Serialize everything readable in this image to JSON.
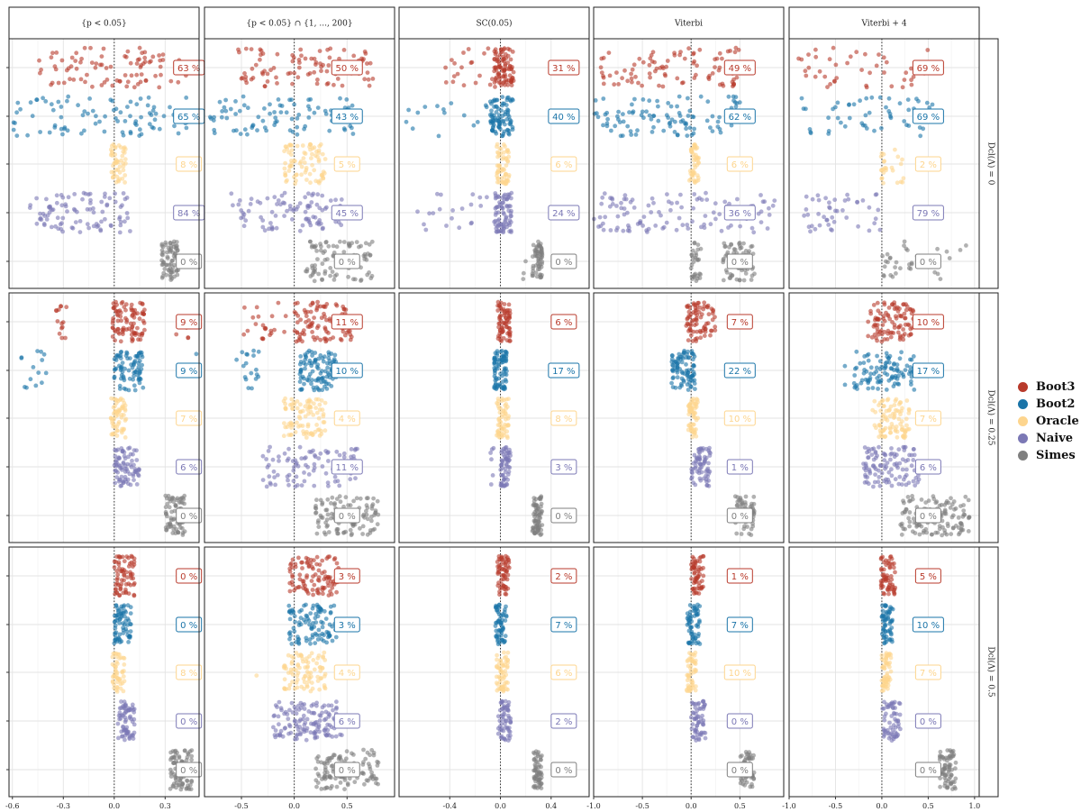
{
  "chart_data": {
    "type": "scatter",
    "description": "Faceted jittered strip plot, 3 rows x 5 columns; each panel shows points per method with a percentage label; dotted vertical line at x=0.",
    "columns": [
      {
        "label": "{p < 0.05}",
        "xlim": [
          -0.62,
          0.5
        ],
        "ticks": [
          -0.6,
          -0.3,
          0.0,
          0.3
        ],
        "tick_labels": [
          "-0.6",
          "-0.3",
          "0.0",
          "0.3"
        ],
        "label_x": 0.44
      },
      {
        "label": "{p < 0.05} ∩ {1, ..., 200}",
        "xlim": [
          -0.85,
          0.95
        ],
        "ticks": [
          -0.5,
          0.0,
          0.5
        ],
        "tick_labels": [
          "-0.5",
          "0.0",
          "0.5"
        ],
        "label_x": 0.5
      },
      {
        "label": "SC(0.05)",
        "xlim": [
          -0.8,
          0.7
        ],
        "ticks": [
          -0.4,
          0.0,
          0.4
        ],
        "tick_labels": [
          "-0.4",
          "0.0",
          "0.4"
        ],
        "label_x": 0.5
      },
      {
        "label": "Viterbi",
        "xlim": [
          -1.0,
          0.95
        ],
        "ticks": [
          -1.0,
          -0.5,
          0.0,
          0.5
        ],
        "tick_labels": [
          "-1.0",
          "-0.5",
          "0.0",
          "0.5"
        ],
        "label_x": 0.5
      },
      {
        "label": "Viterbi + 4",
        "xlim": [
          -1.0,
          1.05
        ],
        "ticks": [
          -1.0,
          -0.5,
          0.0,
          0.5,
          1.0
        ],
        "tick_labels": [
          "-1.0",
          "-0.5",
          "0.0",
          "0.5",
          "1.0"
        ],
        "label_x": 0.5
      }
    ],
    "rows": [
      {
        "label": "Dcl(Λ) = 0"
      },
      {
        "label": "Dcl(Λ) = 0.25"
      },
      {
        "label": "Dcl(Λ) = 0.5"
      }
    ],
    "series": [
      {
        "name": "Boot3",
        "color": "#b83a2b"
      },
      {
        "name": "Boot2",
        "color": "#1a74a8"
      },
      {
        "name": "Oracle",
        "color": "#fdd58e"
      },
      {
        "name": "Naive",
        "color": "#7b78b5"
      },
      {
        "name": "Simes",
        "color": "#7f7f7f"
      }
    ],
    "percentages": [
      [
        [
          "63 %",
          "65 %",
          "8 %",
          "84 %",
          "0 %"
        ],
        [
          "50 %",
          "43 %",
          "5 %",
          "45 %",
          "0 %"
        ],
        [
          "31 %",
          "40 %",
          "6 %",
          "24 %",
          "0 %"
        ],
        [
          "49 %",
          "62 %",
          "6 %",
          "36 %",
          "0 %"
        ],
        [
          "69 %",
          "69 %",
          "2 %",
          "79 %",
          "0 %"
        ]
      ],
      [
        [
          "9 %",
          "9 %",
          "7 %",
          "6 %",
          "0 %"
        ],
        [
          "11 %",
          "10 %",
          "4 %",
          "11 %",
          "0 %"
        ],
        [
          "6 %",
          "17 %",
          "8 %",
          "3 %",
          "0 %"
        ],
        [
          "7 %",
          "22 %",
          "10 %",
          "1 %",
          "0 %"
        ],
        [
          "10 %",
          "17 %",
          "7 %",
          "6 %",
          "0 %"
        ]
      ],
      [
        [
          "0 %",
          "0 %",
          "8 %",
          "0 %",
          "0 %"
        ],
        [
          "3 %",
          "3 %",
          "4 %",
          "6 %",
          "0 %"
        ],
        [
          "2 %",
          "7 %",
          "6 %",
          "2 %",
          "0 %"
        ],
        [
          "1 %",
          "7 %",
          "10 %",
          "0 %",
          "0 %"
        ],
        [
          "5 %",
          "10 %",
          "7 %",
          "0 %",
          "0 %"
        ]
      ]
    ],
    "distributions": [
      [
        [
          [
            [
              -0.45,
              0.45,
              90
            ]
          ],
          [
            [
              -0.62,
              0.45,
              90
            ]
          ],
          [
            [
              -0.02,
              0.07,
              50
            ]
          ],
          [
            [
              -0.5,
              0.1,
              80
            ],
            [
              -0.45,
              -0.3,
              15
            ]
          ],
          [
            [
              0.28,
              0.38,
              70
            ]
          ]
        ],
        [
          [
            [
              -0.55,
              0.75,
              90
            ]
          ],
          [
            [
              -0.8,
              0.6,
              90
            ]
          ],
          [
            [
              -0.1,
              0.3,
              80
            ]
          ],
          [
            [
              -0.6,
              0.45,
              90
            ]
          ],
          [
            [
              0.08,
              0.75,
              90
            ]
          ]
        ],
        [
          [
            [
              -0.45,
              0.12,
              30
            ],
            [
              -0.05,
              0.1,
              80
            ]
          ],
          [
            [
              -0.8,
              -0.1,
              15
            ],
            [
              -0.08,
              0.1,
              90
            ]
          ],
          [
            [
              -0.03,
              0.07,
              60
            ]
          ],
          [
            [
              -0.7,
              -0.1,
              20
            ],
            [
              -0.05,
              0.09,
              80
            ]
          ],
          [
            [
              0.16,
              0.2,
              3
            ],
            [
              0.25,
              0.33,
              60
            ]
          ]
        ],
        [
          [
            [
              -0.95,
              0.5,
              90
            ]
          ],
          [
            [
              -1.0,
              0.5,
              100
            ]
          ],
          [
            [
              -0.02,
              0.08,
              50
            ]
          ],
          [
            [
              -1.0,
              0.9,
              110
            ]
          ],
          [
            [
              0.0,
              0.1,
              30
            ],
            [
              0.3,
              0.65,
              60
            ]
          ]
        ],
        [
          [
            [
              -0.9,
              0.5,
              45
            ]
          ],
          [
            [
              -0.95,
              0.55,
              55
            ]
          ],
          [
            [
              -0.01,
              0.05,
              15
            ],
            [
              0.08,
              0.25,
              10
            ]
          ],
          [
            [
              -0.85,
              0.0,
              45
            ]
          ],
          [
            [
              0.0,
              0.4,
              25
            ],
            [
              0.55,
              0.95,
              10
            ]
          ]
        ]
      ],
      [
        [
          [
            [
              -0.35,
              -0.28,
              14
            ],
            [
              -0.01,
              0.18,
              90
            ],
            [
              0.35,
              0.45,
              5
            ]
          ],
          [
            [
              -0.55,
              -0.4,
              14
            ],
            [
              0.0,
              0.17,
              80
            ],
            [
              0.48,
              0.5,
              2
            ]
          ],
          [
            [
              -0.02,
              0.07,
              60
            ]
          ],
          [
            [
              0.0,
              0.15,
              80
            ]
          ],
          [
            [
              0.3,
              0.42,
              80
            ]
          ]
        ],
        [
          [
            [
              -0.5,
              -0.05,
              22
            ],
            [
              0.0,
              0.55,
              100
            ]
          ],
          [
            [
              -0.55,
              -0.3,
              18
            ],
            [
              0.05,
              0.4,
              100
            ]
          ],
          [
            [
              -0.1,
              0.3,
              90
            ]
          ],
          [
            [
              -0.3,
              0.6,
              90
            ]
          ],
          [
            [
              0.2,
              0.8,
              110
            ]
          ]
        ],
        [
          [
            [
              -0.03,
              0.08,
              70
            ]
          ],
          [
            [
              -0.05,
              0.05,
              80
            ]
          ],
          [
            [
              -0.03,
              0.07,
              60
            ]
          ],
          [
            [
              -0.1,
              -0.05,
              6
            ],
            [
              0.0,
              0.08,
              60
            ]
          ],
          [
            [
              0.25,
              0.33,
              70
            ]
          ]
        ],
        [
          [
            [
              -0.05,
              0.25,
              80
            ]
          ],
          [
            [
              -0.2,
              0.05,
              90
            ]
          ],
          [
            [
              -0.03,
              0.07,
              60
            ]
          ],
          [
            [
              0.0,
              0.2,
              70
            ]
          ],
          [
            [
              0.45,
              0.65,
              60
            ]
          ]
        ],
        [
          [
            [
              -0.15,
              0.35,
              100
            ]
          ],
          [
            [
              -0.3,
              0.35,
              100
            ],
            [
              -0.4,
              -0.35,
              2
            ]
          ],
          [
            [
              -0.1,
              0.3,
              90
            ]
          ],
          [
            [
              -0.2,
              0.4,
              110
            ]
          ],
          [
            [
              0.2,
              0.95,
              130
            ]
          ]
        ]
      ],
      [
        [
          [
            [
              0.0,
              0.12,
              70
            ]
          ],
          [
            [
              0.0,
              0.1,
              70
            ]
          ],
          [
            [
              -0.01,
              0.06,
              50
            ]
          ],
          [
            [
              0.02,
              0.12,
              70
            ]
          ],
          [
            [
              0.33,
              0.46,
              80
            ]
          ]
        ],
        [
          [
            [
              -0.05,
              0.42,
              100
            ]
          ],
          [
            [
              -0.05,
              0.4,
              100
            ]
          ],
          [
            [
              -0.1,
              0.3,
              90
            ],
            [
              -0.4,
              -0.35,
              1
            ]
          ],
          [
            [
              -0.2,
              0.45,
              100
            ],
            [
              0.0,
              0.4,
              40
            ]
          ],
          [
            [
              0.2,
              0.8,
              120
            ]
          ]
        ],
        [
          [
            [
              -0.03,
              0.07,
              60
            ]
          ],
          [
            [
              -0.04,
              0.05,
              60
            ]
          ],
          [
            [
              -0.03,
              0.06,
              60
            ]
          ],
          [
            [
              -0.02,
              0.08,
              60
            ]
          ],
          [
            [
              0.26,
              0.33,
              60
            ]
          ]
        ],
        [
          [
            [
              0.0,
              0.13,
              60
            ]
          ],
          [
            [
              -0.04,
              0.09,
              60
            ]
          ],
          [
            [
              -0.05,
              0.05,
              50
            ]
          ],
          [
            [
              0.0,
              0.15,
              60
            ]
          ],
          [
            [
              0.5,
              0.65,
              60
            ]
          ]
        ],
        [
          [
            [
              -0.01,
              0.15,
              60
            ]
          ],
          [
            [
              0.0,
              0.12,
              60
            ]
          ],
          [
            [
              0.0,
              0.1,
              60
            ]
          ],
          [
            [
              0.0,
              0.2,
              60
            ]
          ],
          [
            [
              0.62,
              0.8,
              70
            ]
          ]
        ]
      ]
    ]
  }
}
